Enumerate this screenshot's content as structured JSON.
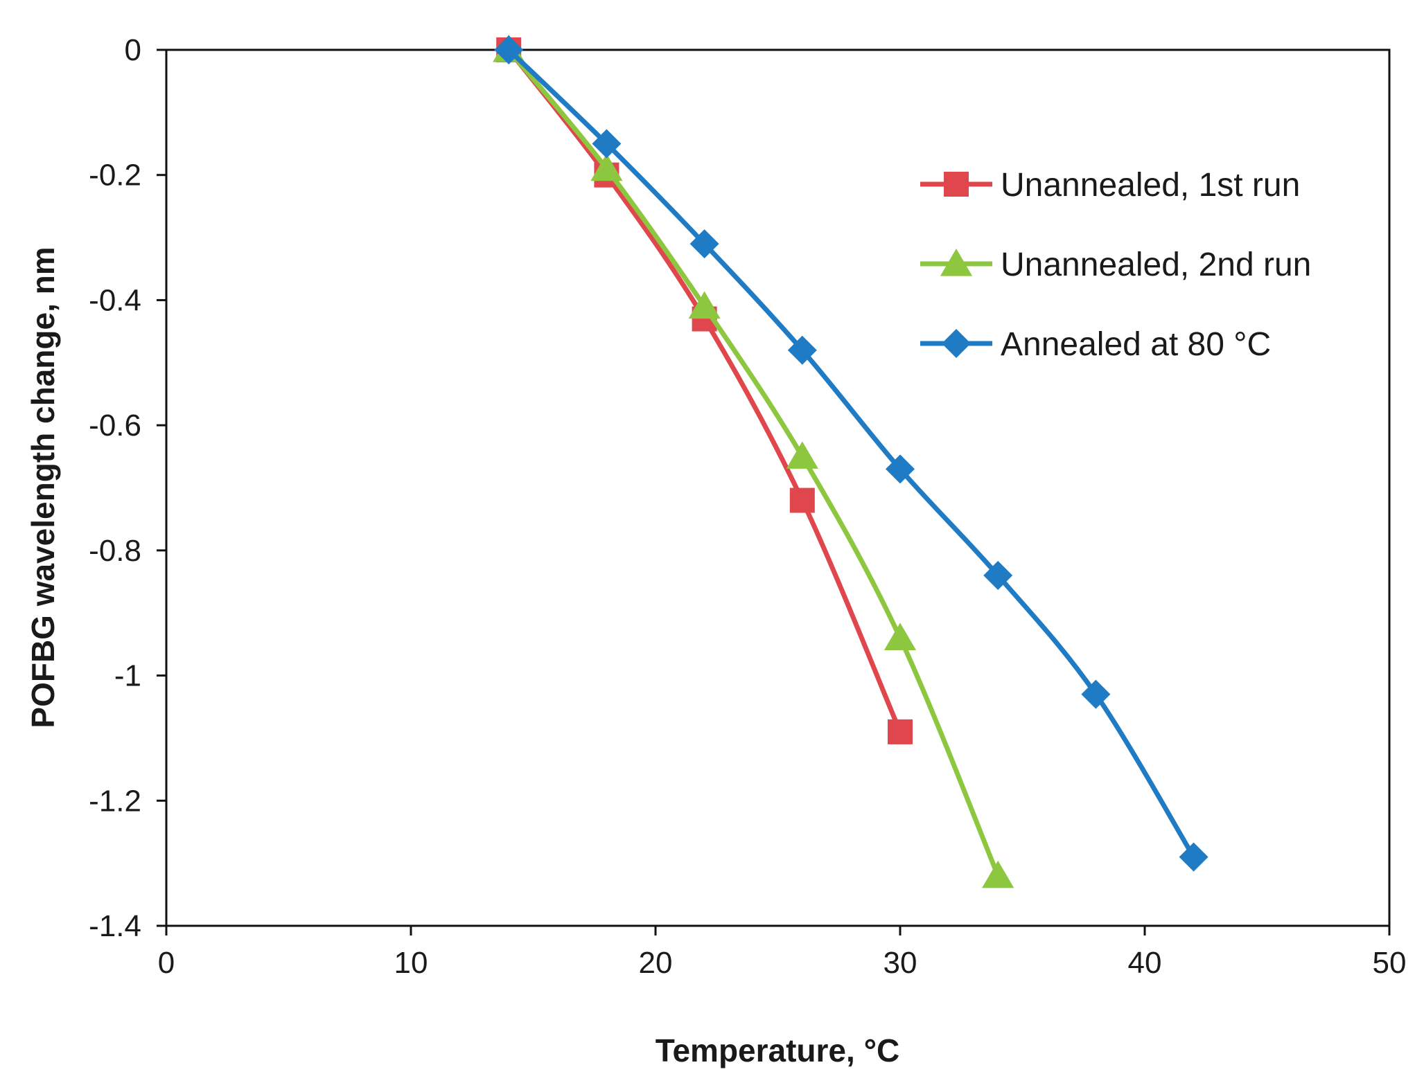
{
  "chart_data": {
    "type": "line",
    "title": "",
    "xlabel": "Temperature, °C",
    "ylabel": "POFBG wavelength change, nm",
    "xlim": [
      0,
      50
    ],
    "ylim": [
      -1.4,
      0
    ],
    "xticks": [
      0,
      10,
      20,
      30,
      40,
      50
    ],
    "yticks": [
      0,
      -0.2,
      -0.4,
      -0.6,
      -0.8,
      -1,
      -1.2,
      -1.4
    ],
    "xtick_labels": [
      "0",
      "10",
      "20",
      "30",
      "40",
      "50"
    ],
    "ytick_labels": [
      "0",
      "-0.2",
      "-0.4",
      "-0.6",
      "-0.8",
      "-1",
      "-1.2",
      "-1.4"
    ],
    "grid": false,
    "legend_position": "top-right",
    "series": [
      {
        "name": "Unannealed, 1st run",
        "color": "#e0474c",
        "marker": "square",
        "x": [
          14,
          18,
          22,
          26,
          30
        ],
        "y": [
          0,
          -0.2,
          -0.43,
          -0.72,
          -1.09
        ]
      },
      {
        "name": "Unannealed, 2nd run",
        "color": "#8dc63f",
        "marker": "triangle",
        "x": [
          14,
          18,
          22,
          26,
          30,
          34
        ],
        "y": [
          0,
          -0.19,
          -0.41,
          -0.65,
          -0.94,
          -1.32
        ]
      },
      {
        "name": "Annealed at 80 °C",
        "color": "#1f7bc4",
        "marker": "diamond",
        "x": [
          14,
          18,
          22,
          26,
          30,
          34,
          38,
          42
        ],
        "y": [
          0,
          -0.15,
          -0.31,
          -0.48,
          -0.67,
          -0.84,
          -1.03,
          -1.29
        ]
      }
    ]
  }
}
